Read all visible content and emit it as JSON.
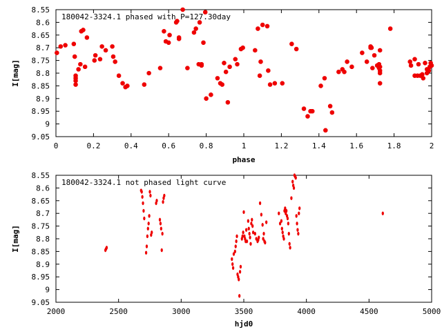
{
  "chart_data": [
    {
      "type": "scatter",
      "title": "180042-3324.1 phased with P=127.30day",
      "xlabel": "phase",
      "ylabel": "I[mag]",
      "xlim": [
        0,
        2
      ],
      "ylim": [
        9.05,
        8.55
      ],
      "y_inverted": true,
      "grid": false,
      "x_ticks": [
        "0",
        "0.2",
        "0.4",
        "0.6",
        "0.8",
        "1",
        "1.2",
        "1.4",
        "1.6",
        "1.8",
        "2"
      ],
      "y_ticks": [
        "8.55",
        "8.6",
        "8.65",
        "8.7",
        "8.75",
        "8.8",
        "8.85",
        "8.9",
        "8.95",
        "9",
        "9.05"
      ],
      "marker_color": "#ee0000",
      "series": [
        {
          "points": [
            [
              0.005,
              8.72
            ],
            [
              0.025,
              8.695
            ],
            [
              0.05,
              8.69
            ],
            [
              0.095,
              8.685
            ],
            [
              0.1,
              8.735
            ],
            [
              0.105,
              8.81
            ],
            [
              0.105,
              8.82
            ],
            [
              0.105,
              8.83
            ],
            [
              0.105,
              8.845
            ],
            [
              0.12,
              8.785
            ],
            [
              0.13,
              8.765
            ],
            [
              0.135,
              8.635
            ],
            [
              0.145,
              8.63
            ],
            [
              0.155,
              8.775
            ],
            [
              0.165,
              8.66
            ],
            [
              0.205,
              8.75
            ],
            [
              0.21,
              8.73
            ],
            [
              0.235,
              8.745
            ],
            [
              0.245,
              8.695
            ],
            [
              0.265,
              8.71
            ],
            [
              0.3,
              8.695
            ],
            [
              0.305,
              8.735
            ],
            [
              0.315,
              8.755
            ],
            [
              0.335,
              8.81
            ],
            [
              0.355,
              8.84
            ],
            [
              0.37,
              8.855
            ],
            [
              0.38,
              8.85
            ],
            [
              0.47,
              8.845
            ],
            [
              0.495,
              8.8
            ],
            [
              0.555,
              8.78
            ],
            [
              0.575,
              8.635
            ],
            [
              0.585,
              8.675
            ],
            [
              0.6,
              8.68
            ],
            [
              0.605,
              8.65
            ],
            [
              0.64,
              8.6
            ],
            [
              0.645,
              8.595
            ],
            [
              0.655,
              8.66
            ],
            [
              0.655,
              8.665
            ],
            [
              0.675,
              8.55
            ],
            [
              0.7,
              8.78
            ],
            [
              0.735,
              8.64
            ],
            [
              0.745,
              8.625
            ],
            [
              0.76,
              8.765
            ],
            [
              0.765,
              8.6
            ],
            [
              0.775,
              8.77
            ],
            [
              0.775,
              8.765
            ],
            [
              0.785,
              8.68
            ],
            [
              0.795,
              8.56
            ],
            [
              0.8,
              8.9
            ],
            [
              0.825,
              8.885
            ],
            [
              0.86,
              8.82
            ],
            [
              0.875,
              8.84
            ],
            [
              0.885,
              8.845
            ],
            [
              0.895,
              8.76
            ],
            [
              0.905,
              8.795
            ],
            [
              0.915,
              8.915
            ],
            [
              0.925,
              8.775
            ],
            [
              0.955,
              8.745
            ],
            [
              0.965,
              8.765
            ],
            [
              0.985,
              8.705
            ],
            [
              0.995,
              8.7
            ],
            [
              1.06,
              8.71
            ],
            [
              1.075,
              8.625
            ],
            [
              1.085,
              8.81
            ],
            [
              1.09,
              8.755
            ],
            [
              1.1,
              8.61
            ],
            [
              1.125,
              8.615
            ],
            [
              1.13,
              8.79
            ],
            [
              1.14,
              8.845
            ],
            [
              1.165,
              8.84
            ],
            [
              1.205,
              8.84
            ],
            [
              1.255,
              8.685
            ],
            [
              1.28,
              8.705
            ],
            [
              1.32,
              8.94
            ],
            [
              1.34,
              8.97
            ],
            [
              1.355,
              8.95
            ],
            [
              1.365,
              8.95
            ],
            [
              1.41,
              8.85
            ],
            [
              1.43,
              8.82
            ],
            [
              1.435,
              9.025
            ],
            [
              1.46,
              8.93
            ],
            [
              1.47,
              8.955
            ],
            [
              1.505,
              8.795
            ],
            [
              1.525,
              8.785
            ],
            [
              1.535,
              8.795
            ],
            [
              1.55,
              8.755
            ],
            [
              1.575,
              8.775
            ],
            [
              1.63,
              8.72
            ],
            [
              1.655,
              8.755
            ],
            [
              1.675,
              8.7
            ],
            [
              1.675,
              8.695
            ],
            [
              1.68,
              8.7
            ],
            [
              1.685,
              8.78
            ],
            [
              1.695,
              8.73
            ],
            [
              1.71,
              8.77
            ],
            [
              1.72,
              8.765
            ],
            [
              1.72,
              8.78
            ],
            [
              1.725,
              8.71
            ],
            [
              1.725,
              8.775
            ],
            [
              1.725,
              8.79
            ],
            [
              1.725,
              8.8
            ],
            [
              1.725,
              8.84
            ],
            [
              1.78,
              8.625
            ],
            [
              1.885,
              8.755
            ],
            [
              1.89,
              8.77
            ],
            [
              1.91,
              8.745
            ],
            [
              1.91,
              8.81
            ],
            [
              1.925,
              8.81
            ],
            [
              1.93,
              8.765
            ],
            [
              1.94,
              8.81
            ],
            [
              1.95,
              8.805
            ],
            [
              1.955,
              8.82
            ],
            [
              1.965,
              8.76
            ],
            [
              1.975,
              8.785
            ],
            [
              1.975,
              8.8
            ],
            [
              1.985,
              8.79
            ],
            [
              1.99,
              8.775
            ],
            [
              1.995,
              8.76
            ],
            [
              2.0,
              8.77
            ]
          ]
        }
      ]
    },
    {
      "type": "scatter",
      "title": "180042-3324.1 not phased light curve",
      "xlabel": "hjd0",
      "ylabel": "I[mag]",
      "xlim": [
        2000,
        5000
      ],
      "ylim": [
        9.05,
        8.55
      ],
      "y_inverted": true,
      "grid": false,
      "x_ticks": [
        "2000",
        "2500",
        "3000",
        "3500",
        "4000",
        "4500",
        "5000"
      ],
      "y_ticks": [
        "8.55",
        "8.6",
        "8.65",
        "8.7",
        "8.75",
        "8.8",
        "8.85",
        "8.9",
        "8.95",
        "9",
        "9.05"
      ],
      "marker_color": "#ee0000",
      "series": [
        {
          "points": [
            [
              2395,
              8.845
            ],
            [
              2400,
              8.84
            ],
            [
              2405,
              8.835
            ],
            [
              2680,
              8.61
            ],
            [
              2685,
              8.615
            ],
            [
              2690,
              8.635
            ],
            [
              2695,
              8.66
            ],
            [
              2700,
              8.69
            ],
            [
              2705,
              8.72
            ],
            [
              2720,
              8.855
            ],
            [
              2725,
              8.83
            ],
            [
              2730,
              8.79
            ],
            [
              2735,
              8.76
            ],
            [
              2740,
              8.74
            ],
            [
              2745,
              8.71
            ],
            [
              2750,
              8.615
            ],
            [
              2755,
              8.63
            ],
            [
              2760,
              8.785
            ],
            [
              2765,
              8.775
            ],
            [
              2800,
              8.66
            ],
            [
              2805,
              8.65
            ],
            [
              2830,
              8.725
            ],
            [
              2835,
              8.74
            ],
            [
              2840,
              8.76
            ],
            [
              2845,
              8.845
            ],
            [
              2850,
              8.78
            ],
            [
              2855,
              8.655
            ],
            [
              2860,
              8.64
            ],
            [
              2865,
              8.63
            ],
            [
              3405,
              8.88
            ],
            [
              3410,
              8.9
            ],
            [
              3415,
              8.915
            ],
            [
              3420,
              8.86
            ],
            [
              3430,
              8.85
            ],
            [
              3435,
              8.83
            ],
            [
              3440,
              8.81
            ],
            [
              3445,
              8.79
            ],
            [
              3450,
              8.94
            ],
            [
              3455,
              8.95
            ],
            [
              3460,
              8.96
            ],
            [
              3465,
              9.025
            ],
            [
              3470,
              8.93
            ],
            [
              3475,
              8.91
            ],
            [
              3485,
              8.8
            ],
            [
              3490,
              8.79
            ],
            [
              3495,
              8.775
            ],
            [
              3500,
              8.695
            ],
            [
              3505,
              8.79
            ],
            [
              3510,
              8.8
            ],
            [
              3515,
              8.81
            ],
            [
              3520,
              8.765
            ],
            [
              3525,
              8.81
            ],
            [
              3535,
              8.73
            ],
            [
              3540,
              8.76
            ],
            [
              3545,
              8.78
            ],
            [
              3550,
              8.795
            ],
            [
              3555,
              8.82
            ],
            [
              3560,
              8.74
            ],
            [
              3565,
              8.725
            ],
            [
              3570,
              8.75
            ],
            [
              3575,
              8.775
            ],
            [
              3590,
              8.78
            ],
            [
              3600,
              8.8
            ],
            [
              3610,
              8.81
            ],
            [
              3615,
              8.805
            ],
            [
              3620,
              8.795
            ],
            [
              3630,
              8.66
            ],
            [
              3640,
              8.705
            ],
            [
              3650,
              8.745
            ],
            [
              3655,
              8.8
            ],
            [
              3660,
              8.78
            ],
            [
              3665,
              8.81
            ],
            [
              3670,
              8.815
            ],
            [
              3680,
              8.735
            ],
            [
              3780,
              8.7
            ],
            [
              3790,
              8.74
            ],
            [
              3800,
              8.73
            ],
            [
              3805,
              8.76
            ],
            [
              3810,
              8.775
            ],
            [
              3815,
              8.79
            ],
            [
              3820,
              8.8
            ],
            [
              3825,
              8.69
            ],
            [
              3830,
              8.68
            ],
            [
              3835,
              8.7
            ],
            [
              3840,
              8.69
            ],
            [
              3845,
              8.71
            ],
            [
              3850,
              8.72
            ],
            [
              3855,
              8.74
            ],
            [
              3860,
              8.78
            ],
            [
              3865,
              8.82
            ],
            [
              3870,
              8.835
            ],
            [
              3880,
              8.64
            ],
            [
              3890,
              8.575
            ],
            [
              3895,
              8.59
            ],
            [
              3900,
              8.6
            ],
            [
              3905,
              8.55
            ],
            [
              3910,
              8.555
            ],
            [
              3915,
              8.56
            ],
            [
              3920,
              8.71
            ],
            [
              3925,
              8.74
            ],
            [
              3930,
              8.765
            ],
            [
              3935,
              8.78
            ],
            [
              3940,
              8.7
            ],
            [
              3945,
              8.68
            ],
            [
              4610,
              8.7
            ]
          ]
        }
      ]
    }
  ]
}
